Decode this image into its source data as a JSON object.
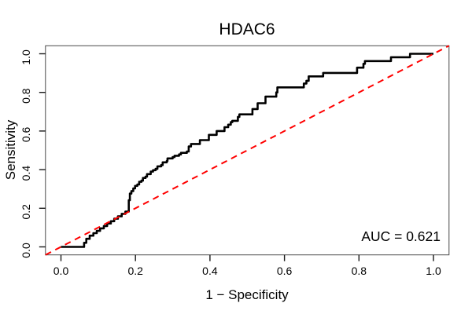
{
  "chart_data": {
    "type": "line",
    "subtype": "roc-curve-step",
    "title": "HDAC6",
    "xlabel": "1 − Specificity",
    "ylabel": "Sensitivity",
    "xlim": [
      0.0,
      1.0
    ],
    "ylim": [
      0.0,
      1.0
    ],
    "x_ticks": [
      "0.0",
      "0.2",
      "0.4",
      "0.6",
      "0.8",
      "1.0"
    ],
    "y_ticks": [
      "0.0",
      "0.2",
      "0.4",
      "0.6",
      "0.8",
      "1.0"
    ],
    "grid": false,
    "legend": "none",
    "annotation": "AUC = 0.621",
    "auc_value": 0.621,
    "colors": {
      "roc_curve": "#000000",
      "reference_diagonal": "#ff0000",
      "frame": "#4a4a4a"
    },
    "series": [
      {
        "name": "ROC curve",
        "color": "#000000",
        "style": "solid",
        "points": [
          [
            0.0,
            0.0
          ],
          [
            0.062,
            0.0
          ],
          [
            0.062,
            0.021
          ],
          [
            0.068,
            0.021
          ],
          [
            0.068,
            0.042
          ],
          [
            0.077,
            0.042
          ],
          [
            0.077,
            0.058
          ],
          [
            0.087,
            0.058
          ],
          [
            0.087,
            0.071
          ],
          [
            0.096,
            0.071
          ],
          [
            0.096,
            0.083
          ],
          [
            0.105,
            0.083
          ],
          [
            0.105,
            0.096
          ],
          [
            0.115,
            0.096
          ],
          [
            0.115,
            0.108
          ],
          [
            0.124,
            0.108
          ],
          [
            0.124,
            0.121
          ],
          [
            0.134,
            0.121
          ],
          [
            0.134,
            0.133
          ],
          [
            0.143,
            0.133
          ],
          [
            0.143,
            0.146
          ],
          [
            0.153,
            0.146
          ],
          [
            0.153,
            0.158
          ],
          [
            0.163,
            0.158
          ],
          [
            0.163,
            0.171
          ],
          [
            0.173,
            0.171
          ],
          [
            0.173,
            0.183
          ],
          [
            0.182,
            0.183
          ],
          [
            0.182,
            0.242
          ],
          [
            0.185,
            0.242
          ],
          [
            0.185,
            0.276
          ],
          [
            0.189,
            0.276
          ],
          [
            0.189,
            0.289
          ],
          [
            0.194,
            0.289
          ],
          [
            0.194,
            0.303
          ],
          [
            0.199,
            0.303
          ],
          [
            0.199,
            0.316
          ],
          [
            0.205,
            0.316
          ],
          [
            0.205,
            0.323
          ],
          [
            0.21,
            0.323
          ],
          [
            0.21,
            0.337
          ],
          [
            0.216,
            0.337
          ],
          [
            0.216,
            0.343
          ],
          [
            0.22,
            0.343
          ],
          [
            0.22,
            0.357
          ],
          [
            0.227,
            0.357
          ],
          [
            0.227,
            0.364
          ],
          [
            0.231,
            0.364
          ],
          [
            0.231,
            0.377
          ],
          [
            0.241,
            0.377
          ],
          [
            0.241,
            0.39
          ],
          [
            0.247,
            0.39
          ],
          [
            0.247,
            0.397
          ],
          [
            0.254,
            0.397
          ],
          [
            0.254,
            0.404
          ],
          [
            0.259,
            0.404
          ],
          [
            0.259,
            0.417
          ],
          [
            0.269,
            0.417
          ],
          [
            0.269,
            0.424
          ],
          [
            0.273,
            0.424
          ],
          [
            0.273,
            0.438
          ],
          [
            0.284,
            0.438
          ],
          [
            0.284,
            0.445
          ],
          [
            0.286,
            0.445
          ],
          [
            0.286,
            0.458
          ],
          [
            0.3,
            0.458
          ],
          [
            0.3,
            0.465
          ],
          [
            0.305,
            0.465
          ],
          [
            0.305,
            0.472
          ],
          [
            0.317,
            0.472
          ],
          [
            0.317,
            0.479
          ],
          [
            0.322,
            0.479
          ],
          [
            0.322,
            0.487
          ],
          [
            0.338,
            0.487
          ],
          [
            0.338,
            0.494
          ],
          [
            0.343,
            0.494
          ],
          [
            0.343,
            0.52
          ],
          [
            0.349,
            0.52
          ],
          [
            0.349,
            0.533
          ],
          [
            0.373,
            0.533
          ],
          [
            0.373,
            0.553
          ],
          [
            0.397,
            0.553
          ],
          [
            0.397,
            0.58
          ],
          [
            0.418,
            0.58
          ],
          [
            0.418,
            0.6
          ],
          [
            0.439,
            0.6
          ],
          [
            0.439,
            0.62
          ],
          [
            0.449,
            0.62
          ],
          [
            0.449,
            0.633
          ],
          [
            0.456,
            0.633
          ],
          [
            0.456,
            0.646
          ],
          [
            0.46,
            0.646
          ],
          [
            0.46,
            0.653
          ],
          [
            0.475,
            0.653
          ],
          [
            0.475,
            0.673
          ],
          [
            0.479,
            0.673
          ],
          [
            0.479,
            0.686
          ],
          [
            0.514,
            0.686
          ],
          [
            0.514,
            0.714
          ],
          [
            0.528,
            0.714
          ],
          [
            0.528,
            0.744
          ],
          [
            0.549,
            0.744
          ],
          [
            0.549,
            0.778
          ],
          [
            0.578,
            0.778
          ],
          [
            0.578,
            0.8
          ],
          [
            0.581,
            0.8
          ],
          [
            0.581,
            0.826
          ],
          [
            0.652,
            0.826
          ],
          [
            0.652,
            0.846
          ],
          [
            0.659,
            0.846
          ],
          [
            0.659,
            0.86
          ],
          [
            0.665,
            0.86
          ],
          [
            0.665,
            0.883
          ],
          [
            0.704,
            0.883
          ],
          [
            0.704,
            0.901
          ],
          [
            0.795,
            0.901
          ],
          [
            0.795,
            0.928
          ],
          [
            0.812,
            0.928
          ],
          [
            0.812,
            0.948
          ],
          [
            0.816,
            0.948
          ],
          [
            0.816,
            0.962
          ],
          [
            0.886,
            0.962
          ],
          [
            0.886,
            0.982
          ],
          [
            0.937,
            0.982
          ],
          [
            0.937,
            1.0
          ],
          [
            1.0,
            1.0
          ]
        ]
      },
      {
        "name": "chance diagonal",
        "role": "reference-diagonal",
        "color": "#ff0000",
        "style": "dashed",
        "points": [
          [
            0.0,
            0.0
          ],
          [
            1.0,
            1.0
          ]
        ]
      }
    ]
  }
}
